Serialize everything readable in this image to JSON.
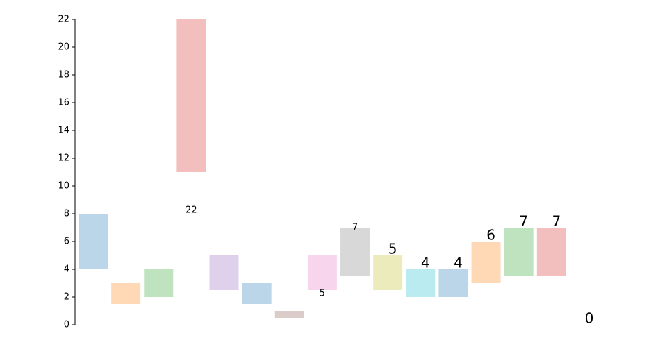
{
  "chart_data": {
    "type": "floating-bar",
    "low": [
      4,
      1.5,
      2,
      11,
      2.5,
      1.5,
      0.5,
      2.5,
      3.5,
      2.5,
      2,
      2,
      3,
      3.5,
      3.5,
      0
    ],
    "high": [
      8,
      3,
      4,
      22,
      5,
      3,
      1,
      5,
      7,
      5,
      4,
      4,
      6,
      7,
      7,
      0
    ],
    "value_labels": [
      null,
      null,
      null,
      "22",
      null,
      null,
      null,
      "5",
      "7",
      "5",
      "4",
      "4",
      "6",
      "7",
      "7",
      "0"
    ],
    "colors": [
      "#1f77b4",
      "#ff7f0e",
      "#2ca02c",
      "#d62728",
      "#9467bd",
      "#1f77b4",
      "#8c564b",
      "#e377c2",
      "#7f7f7f",
      "#bcbd22",
      "#17becf",
      "#1f77b4",
      "#ff7f0e",
      "#2ca02c",
      "#d62728",
      "#1f77b4"
    ],
    "ylim": [
      0,
      22
    ],
    "yticks": [
      0,
      2,
      4,
      6,
      8,
      10,
      12,
      14,
      16,
      18,
      20,
      22
    ]
  }
}
